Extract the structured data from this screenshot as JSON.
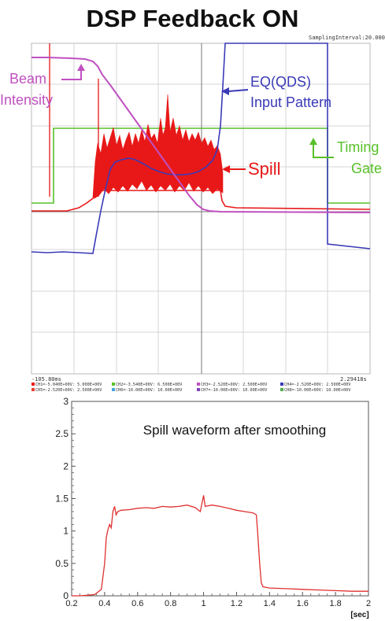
{
  "title": "DSP Feedback ON",
  "scope": {
    "sampling_label": "SamplingInterval:20.000us",
    "time_start": "-105.80ms",
    "time_end": "2.29418s",
    "channels_row1": [
      "CH1=-5.040E+00V: 5.000E+00V",
      "CH2=-3.540E+00V: 6.500E+00V",
      "CH3=-2.520E+00V: 2.500E+00V",
      "CH4=-2.520E+00V: 2.500E+00V"
    ],
    "channels_row2": [
      "CH5=-2.520E+00V: 2.500E+00V",
      "CH6=-10.00E+00V: 10.00E+00V",
      "CH7=-10.00E+00V: 10.00E+00V",
      "CH8=-10.00E+00V: 10.00E+00V"
    ],
    "annotations": {
      "beam_line1": "Beam",
      "beam_line2": "Intensity",
      "eq_line1": "EQ(QDS)",
      "eq_line2": "Input Pattern",
      "timing_line1": "Timing",
      "timing_line2": "Gate",
      "spill": "Spill"
    },
    "colors": {
      "beam": "#c050c0",
      "eq": "#3a3ab8",
      "timing": "#58c028",
      "spill": "#e81818",
      "grid": "#c4c4c4",
      "axis": "#555555"
    }
  },
  "chart_data": {
    "type": "line",
    "title": "Spill waveform after smoothing",
    "xlabel": "[sec]",
    "ylabel": "",
    "xlim": [
      0.2,
      2
    ],
    "ylim": [
      0,
      3
    ],
    "xticks": [
      "0.2",
      "0.4",
      "0.6",
      "0.8",
      "1",
      "1.2",
      "1.4",
      "1.6",
      "1.8",
      "2"
    ],
    "yticks": [
      "0",
      "0.5",
      "1",
      "1.5",
      "2",
      "2.5",
      "3"
    ],
    "line_color": "#e03030",
    "series": [
      {
        "x": [
          0.2,
          0.25,
          0.3,
          0.34,
          0.38,
          0.4,
          0.41,
          0.42,
          0.43,
          0.44,
          0.45,
          0.46,
          0.47,
          0.48,
          0.5,
          0.55,
          0.6,
          0.65,
          0.7,
          0.75,
          0.8,
          0.85,
          0.9,
          0.95,
          0.98,
          1.0,
          1.01,
          1.05,
          1.1,
          1.15,
          1.2,
          1.25,
          1.3,
          1.32,
          1.33,
          1.34,
          1.35,
          1.36,
          1.4,
          1.5,
          1.6,
          1.7,
          1.8,
          1.9,
          2.0
        ],
        "y": [
          0.0,
          0.0,
          0.01,
          0.02,
          0.1,
          0.5,
          0.9,
          1.02,
          1.1,
          1.05,
          1.3,
          1.38,
          1.25,
          1.3,
          1.32,
          1.33,
          1.35,
          1.36,
          1.35,
          1.38,
          1.37,
          1.38,
          1.4,
          1.36,
          1.3,
          1.55,
          1.38,
          1.4,
          1.38,
          1.35,
          1.32,
          1.3,
          1.28,
          1.25,
          0.9,
          0.5,
          0.2,
          0.14,
          0.12,
          0.11,
          0.1,
          0.09,
          0.08,
          0.07,
          0.07
        ]
      }
    ]
  }
}
